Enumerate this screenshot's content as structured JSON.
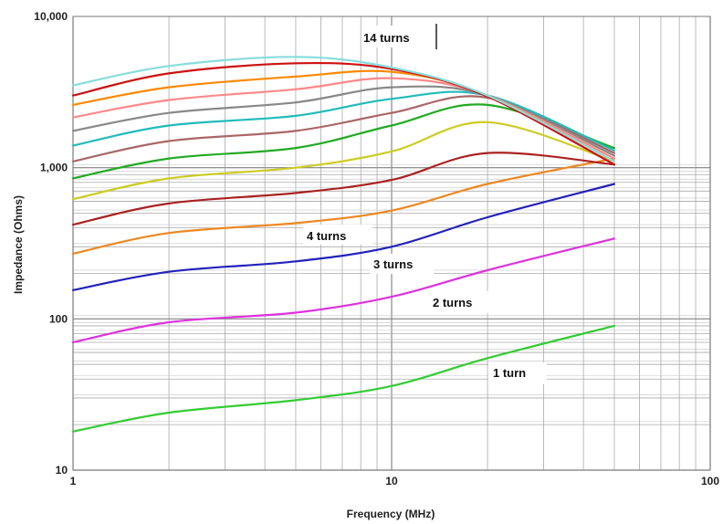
{
  "chart_data": {
    "type": "line",
    "title": "",
    "xlabel": "Frequency  (MHz)",
    "ylabel": "Impedance (Ohms)",
    "x_scale": "log",
    "y_scale": "log",
    "xlim": [
      1,
      100
    ],
    "ylim": [
      10,
      10000
    ],
    "grid": true,
    "legend": "none",
    "x_ticks": [
      "1",
      "10",
      "100"
    ],
    "y_ticks": [
      "10",
      "100",
      "1,000",
      "10,000"
    ],
    "annotations": [
      "14 turns",
      "4 turns",
      "3 turns",
      "2 turns",
      "1 turn"
    ],
    "x": [
      1,
      2,
      5,
      10,
      20,
      50
    ],
    "series": [
      {
        "color": "#33cc33",
        "values": [
          18,
          24,
          29,
          36,
          55,
          90
        ]
      },
      {
        "color": "#dd33dd",
        "values": [
          70,
          95,
          110,
          140,
          210,
          340
        ]
      },
      {
        "color": "#2222bb",
        "values": [
          155,
          205,
          240,
          300,
          470,
          780
        ]
      },
      {
        "color": "#ee8822",
        "values": [
          270,
          370,
          430,
          520,
          780,
          1150
        ]
      },
      {
        "color": "#aa2222",
        "values": [
          420,
          580,
          680,
          830,
          1250,
          1050
        ]
      },
      {
        "color": "#cccc22",
        "values": [
          620,
          850,
          1000,
          1280,
          2000,
          1100
        ]
      },
      {
        "color": "#22aa22",
        "values": [
          850,
          1150,
          1350,
          1900,
          2600,
          1350
        ]
      },
      {
        "color": "#aa6666",
        "values": [
          1100,
          1500,
          1750,
          2300,
          2900,
          1250
        ]
      },
      {
        "color": "#22bbbb",
        "values": [
          1400,
          1900,
          2200,
          2850,
          3000,
          1300
        ]
      },
      {
        "color": "#888888",
        "values": [
          1750,
          2300,
          2700,
          3400,
          3000,
          1200
        ]
      },
      {
        "color": "#ff8888",
        "values": [
          2150,
          2800,
          3300,
          3900,
          3000,
          1150
        ]
      },
      {
        "color": "#ff8800",
        "values": [
          2600,
          3400,
          4000,
          4300,
          3000,
          1100
        ]
      },
      {
        "color": "#cc1111",
        "values": [
          3000,
          4200,
          4900,
          4500,
          2950,
          1050
        ]
      },
      {
        "color": "#88dddd",
        "values": [
          3500,
          4700,
          5400,
          4600,
          3000,
          1100
        ]
      }
    ]
  }
}
